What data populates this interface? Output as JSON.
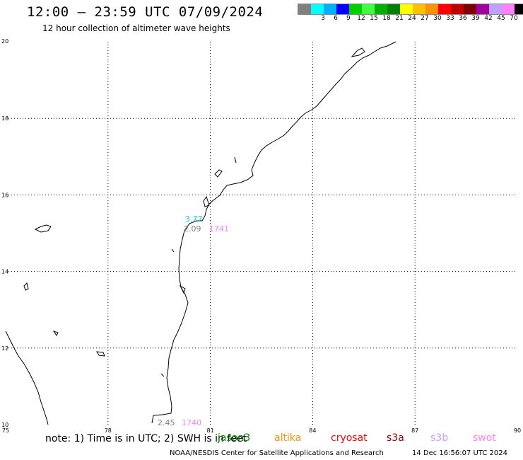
{
  "header": {
    "title": "12:00 – 23:59 UTC 07/09/2024",
    "subtitle": "12 hour collection of altimeter wave heights"
  },
  "legend": {
    "unit": "(ft)",
    "items": [
      {
        "label": "",
        "color": "#808080"
      },
      {
        "label": "3",
        "color": "#00ffff"
      },
      {
        "label": "6",
        "color": "#00b0ff"
      },
      {
        "label": "9",
        "color": "#0000ff"
      },
      {
        "label": "12",
        "color": "#00d000"
      },
      {
        "label": "15",
        "color": "#40ff40"
      },
      {
        "label": "18",
        "color": "#00b000"
      },
      {
        "label": "21",
        "color": "#008000"
      },
      {
        "label": "24",
        "color": "#ffff00"
      },
      {
        "label": "27",
        "color": "#ffc000"
      },
      {
        "label": "30",
        "color": "#ff9000"
      },
      {
        "label": "33",
        "color": "#ff0000"
      },
      {
        "label": "36",
        "color": "#c00000"
      },
      {
        "label": "39",
        "color": "#800000"
      },
      {
        "label": "42",
        "color": "#a000a0"
      },
      {
        "label": "45",
        "color": "#c0a0ff"
      },
      {
        "label": "70",
        "color": "#ff80ff"
      },
      {
        "label": "",
        "color": "#000000"
      }
    ]
  },
  "map": {
    "x_ticks": [
      "75",
      "78",
      "81",
      "84",
      "87",
      "90"
    ],
    "y_ticks": [
      "20",
      "18",
      "16",
      "14",
      "12",
      "10"
    ],
    "annotations": [
      {
        "text": "3.77",
        "color": "#00d0e0"
      },
      {
        "text": "2.09",
        "color": "#808080"
      },
      {
        "text": "1741",
        "color": "#ff80ff"
      },
      {
        "text": "2.45",
        "color": "#808080"
      },
      {
        "text": "1740",
        "color": "#ff80ff"
      }
    ]
  },
  "footer": {
    "note": "note: 1) Time is in UTC; 2) SWH is in feet",
    "satellites": [
      {
        "name": "jason3",
        "color": "#008000"
      },
      {
        "name": "altika",
        "color": "#ff9000"
      },
      {
        "name": "cryosat",
        "color": "#ff0000"
      },
      {
        "name": "s3a",
        "color": "#800000"
      },
      {
        "name": "s3b",
        "color": "#c0a0ff"
      },
      {
        "name": "swot",
        "color": "#ff80ff"
      }
    ],
    "credit": "NOAA/NESDIS Center for Satellite Applications and Research",
    "timestamp": "14 Dec 16:56:07 UTC 2024"
  }
}
